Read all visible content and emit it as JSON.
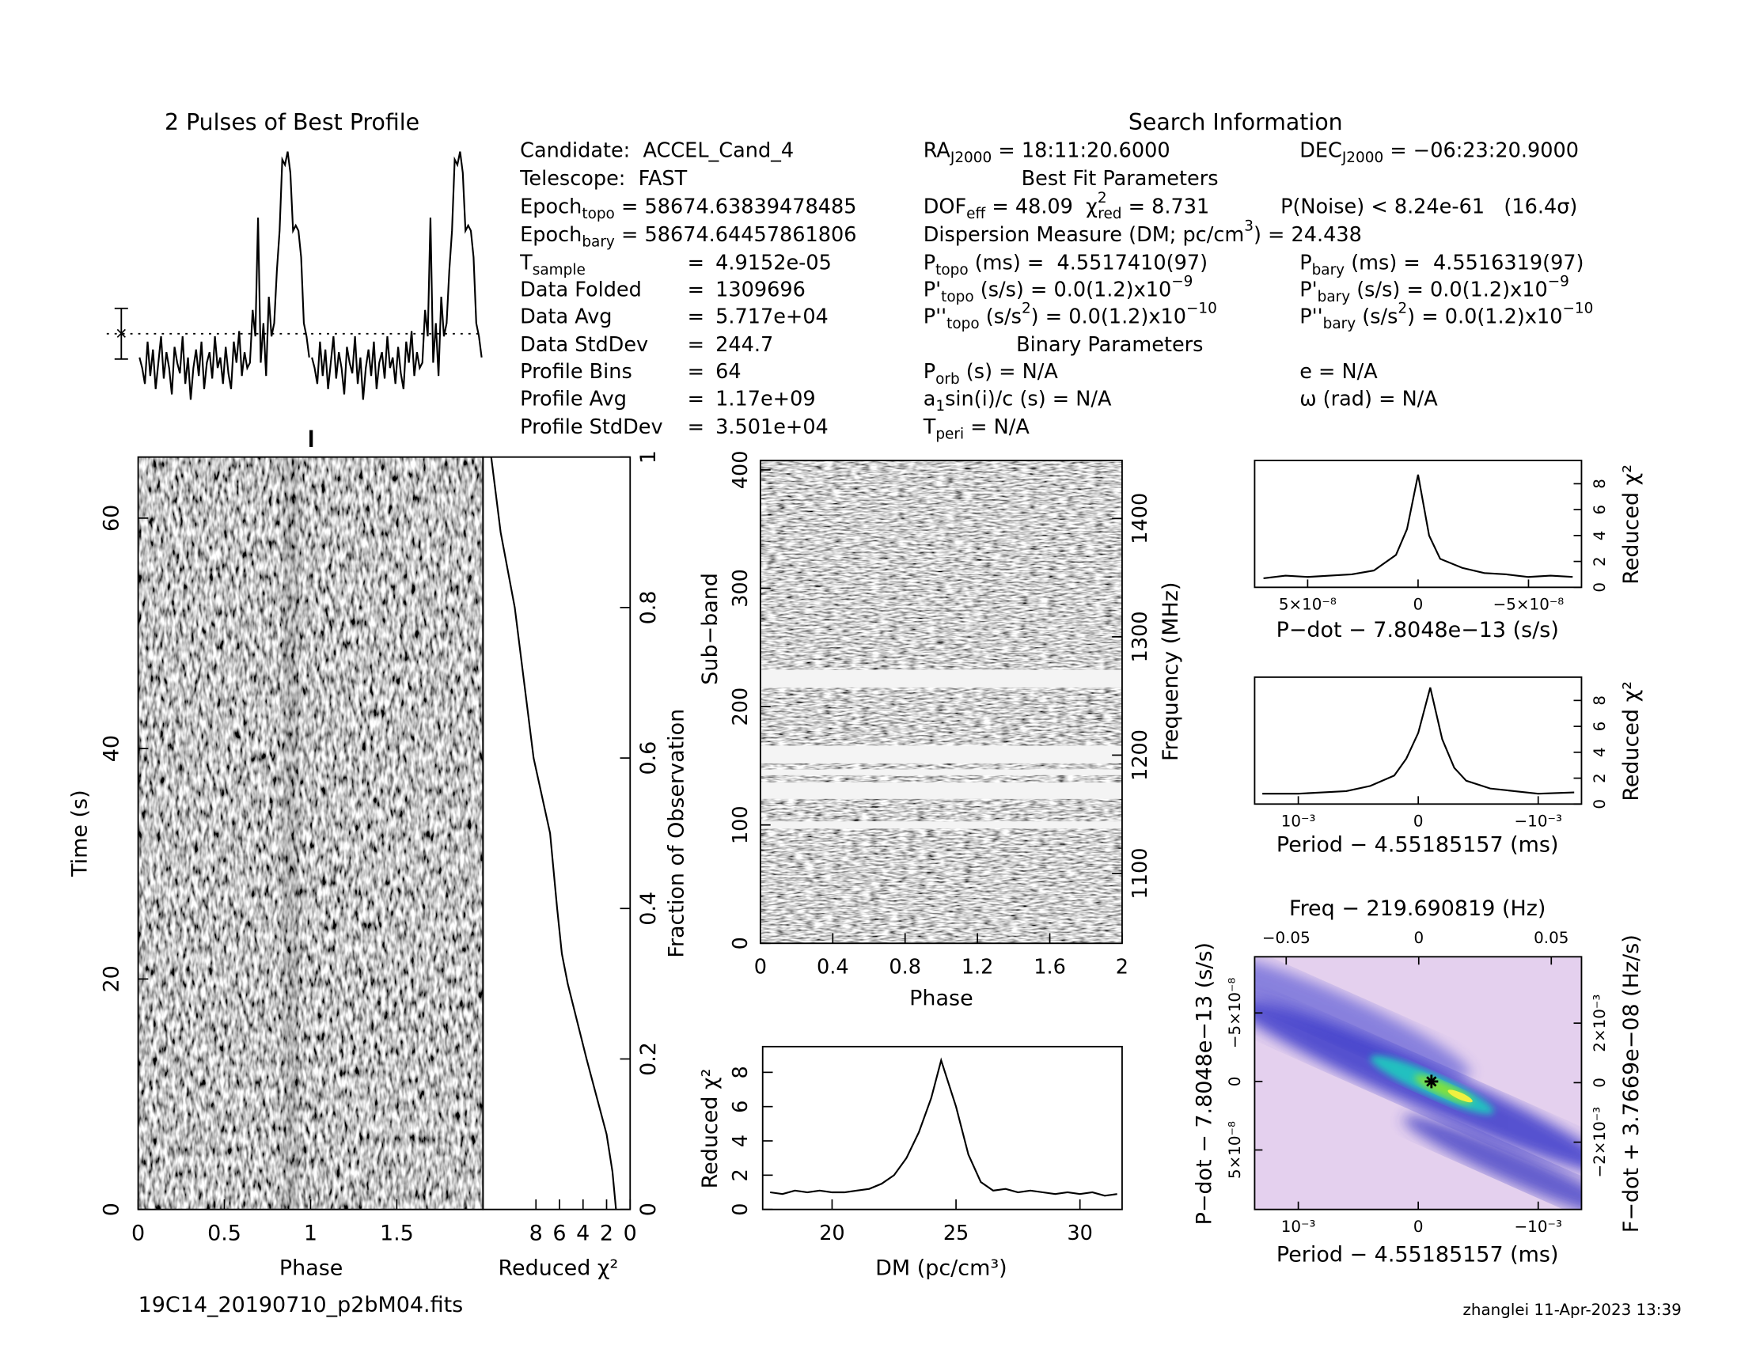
{
  "header": {
    "info_title": "Search Information",
    "best_fit_title": "Best Fit Parameters",
    "binary_title": "Binary Parameters",
    "col1": [
      [
        "Candidate:  ACCEL_Cand_4"
      ],
      [
        "Telescope:  FAST"
      ],
      [
        "Epoch",
        {
          "sub": "topo"
        },
        " = 58674.63839478485"
      ],
      [
        "Epoch",
        {
          "sub": "bary"
        },
        " = 58674.64457861806"
      ],
      {
        "label": [
          "T",
          {
            "sub": "sample"
          }
        ],
        "eq": "=",
        "value": "4.9152e-05"
      },
      {
        "label": [
          "Data Folded"
        ],
        "eq": "=",
        "value": "1309696"
      },
      {
        "label": [
          "Data Avg"
        ],
        "eq": "=",
        "value": "5.717e+04"
      },
      {
        "label": [
          "Data StdDev"
        ],
        "eq": "=",
        "value": "244.7"
      },
      {
        "label": [
          "Profile Bins"
        ],
        "eq": "=",
        "value": "64"
      },
      {
        "label": [
          "Profile Avg"
        ],
        "eq": "=",
        "value": "1.17e+09"
      },
      {
        "label": [
          "Profile StdDev"
        ],
        "eq": "=",
        "value": "3.501e+04"
      }
    ],
    "col2": [
      [
        "RA",
        {
          "sub": "J2000"
        },
        " = 18:11:20.6000"
      ],
      [
        "DOF",
        {
          "sub": "eff"
        },
        " = 48.09  χ",
        {
          "sup": "2"
        },
        {
          "sub": "red"
        },
        " = 8.731"
      ],
      [
        "Dispersion Measure (DM; pc/cm",
        {
          "sup": "3"
        },
        ") = 24.438"
      ],
      [
        "P",
        {
          "sub": "topo"
        },
        " (ms) =  4.5517410(97)"
      ],
      [
        "P'",
        {
          "sub": "topo"
        },
        " (s/s) = 0.0(1.2)x10",
        {
          "sup": "−9"
        }
      ],
      [
        "P''",
        {
          "sub": "topo"
        },
        " (s/s",
        {
          "sup": "2"
        },
        ") = 0.0(1.2)x10",
        {
          "sup": "−10"
        }
      ],
      [
        "P",
        {
          "sub": "orb"
        },
        " (s) = N/A"
      ],
      [
        "a",
        {
          "sub": "1"
        },
        "sin(i)/c (s) = N/A"
      ],
      [
        "T",
        {
          "sub": "peri"
        },
        " = N/A"
      ]
    ],
    "col3": [
      [
        "DEC",
        {
          "sub": "J2000"
        },
        " = −06:23:20.9000"
      ],
      [
        "P(Noise) < 8.24e-61   (16.4σ)"
      ],
      [
        "P",
        {
          "sub": "bary"
        },
        " (ms) =  4.5516319(97)"
      ],
      [
        "P'",
        {
          "sub": "bary"
        },
        " (s/s) = 0.0(1.2)x10",
        {
          "sup": "−9"
        }
      ],
      [
        "P''",
        {
          "sub": "bary"
        },
        " (s/s",
        {
          "sup": "2"
        },
        ") = 0.0(1.2)x10",
        {
          "sup": "−10"
        }
      ],
      [
        "e = N/A"
      ],
      [
        "ω (rad) = N/A"
      ]
    ]
  },
  "footer": {
    "file": "19C14_20190710_p2bM04.fits",
    "stamp": "zhanglei 11-Apr-2023 13:39"
  },
  "chart_data": [
    {
      "type": "profile",
      "title": "2 Pulses of Best Profile",
      "ylim": [
        0,
        100
      ],
      "avg": 31,
      "error": 9.6,
      "values": [
        22,
        18,
        12,
        28,
        15,
        25,
        10,
        20,
        30,
        14,
        24,
        18,
        8,
        26,
        20,
        16,
        30,
        12,
        22,
        6,
        18,
        25,
        15,
        28,
        10,
        20,
        24,
        14,
        30,
        18,
        22,
        12,
        26,
        16,
        10,
        28,
        20,
        32,
        15,
        24,
        18,
        20,
        40,
        30,
        75,
        20,
        35,
        15,
        45,
        30,
        35,
        55,
        70,
        97,
        95,
        100,
        92,
        70,
        72,
        70,
        60,
        35,
        30,
        22
      ]
    },
    {
      "type": "image",
      "xlabel": "Phase",
      "ylabel": "Time (s)",
      "xlim": [
        0,
        2
      ],
      "xticks": [
        0,
        0.5,
        1,
        1.5
      ],
      "ylim": [
        0,
        65.3
      ],
      "yticks": [
        0,
        20,
        40,
        60
      ]
    },
    {
      "type": "line",
      "xlabel": "Reduced χ²",
      "ylabel": "Fraction of Observation",
      "yaxis_side": "right",
      "xlim": [
        12.5,
        0
      ],
      "xticks": [
        8,
        6,
        4,
        2,
        0
      ],
      "ylim": [
        0,
        1
      ],
      "yticks": [
        0,
        0.2,
        0.4,
        0.6,
        0.8,
        1
      ],
      "x": [
        1.2,
        1.5,
        2.0,
        3.7,
        5.3,
        5.8,
        6.2,
        6.8,
        8.2,
        9.0,
        9.8,
        11.0,
        11.8
      ],
      "values": [
        0,
        0.05,
        0.1,
        0.2,
        0.3,
        0.34,
        0.4,
        0.5,
        0.6,
        0.7,
        0.8,
        0.9,
        1.0
      ]
    },
    {
      "type": "image",
      "xlabel": "Phase",
      "ylabel": "Sub−band",
      "y2label": "Frequency (MHz)",
      "xlim": [
        0,
        2
      ],
      "xticks": [
        0,
        0.4,
        0.8,
        1.2,
        1.6,
        2
      ],
      "ylim": [
        0,
        408
      ],
      "yticks": [
        0,
        100,
        200,
        300,
        400
      ],
      "y2lim": [
        1041,
        1449
      ],
      "y2ticks": [
        1100,
        1200,
        1300,
        1400
      ],
      "masked": [
        [
          97,
          103
        ],
        [
          122,
          136
        ],
        [
          142,
          147
        ],
        [
          152,
          167
        ],
        [
          216,
          231
        ]
      ]
    },
    {
      "type": "line",
      "xlabel": "DM (pc/cm³)",
      "ylabel": "Reduced χ²",
      "xlim": [
        17.2,
        31.7
      ],
      "xticks": [
        20,
        25,
        30
      ],
      "ylim": [
        0,
        9.5
      ],
      "yticks": [
        0,
        2,
        4,
        6,
        8
      ],
      "x": [
        17.5,
        18,
        18.5,
        19,
        19.5,
        20,
        20.5,
        21,
        21.5,
        22,
        22.5,
        23,
        23.5,
        24,
        24.4,
        25,
        25.5,
        26,
        26.5,
        27,
        27.5,
        28,
        28.5,
        29,
        29.5,
        30,
        30.5,
        31,
        31.5
      ],
      "values": [
        1.0,
        0.9,
        1.1,
        1.0,
        1.1,
        1.0,
        1.0,
        1.1,
        1.2,
        1.5,
        2.0,
        3.0,
        4.5,
        6.5,
        8.7,
        6.0,
        3.2,
        1.6,
        1.1,
        1.2,
        1.0,
        1.1,
        1.0,
        0.9,
        1.0,
        0.9,
        1.0,
        0.8,
        0.9
      ]
    },
    {
      "type": "line",
      "xlabel": "P−dot − 7.8048e−13 (s/s)",
      "ylabel": "Reduced χ²",
      "yaxis_side": "right",
      "xlim": [
        7.4e-08,
        -7.4e-08
      ],
      "xticks": [
        {
          "value": 5e-08,
          "label": "5×10⁻⁸"
        },
        0,
        {
          "value": -5e-08,
          "label": "−5×10⁻⁸"
        }
      ],
      "ylim": [
        0,
        9.8
      ],
      "yticks": [
        0,
        2,
        4,
        6,
        8
      ],
      "x": [
        7e-08,
        6e-08,
        5e-08,
        4e-08,
        3e-08,
        2e-08,
        1e-08,
        5e-09,
        0,
        -5e-09,
        -1e-08,
        -2e-08,
        -3e-08,
        -4e-08,
        -5e-08,
        -6e-08,
        -7e-08
      ],
      "values": [
        0.7,
        0.9,
        0.8,
        0.9,
        1.0,
        1.3,
        2.5,
        4.5,
        8.7,
        4.0,
        2.2,
        1.5,
        1.1,
        1.0,
        0.8,
        0.9,
        0.8
      ]
    },
    {
      "type": "line",
      "xlabel": "Period − 4.55185157 (ms)",
      "ylabel": "Reduced χ²",
      "yaxis_side": "right",
      "xlim": [
        0.001364,
        -0.001361
      ],
      "xticks": [
        {
          "value": 0.001,
          "label": "10⁻³"
        },
        0,
        {
          "value": -0.001,
          "label": "−10⁻³"
        }
      ],
      "ylim": [
        0,
        9.8
      ],
      "yticks": [
        0,
        2,
        4,
        6,
        8
      ],
      "x": [
        0.0013,
        0.001,
        0.0008,
        0.0006,
        0.0004,
        0.0002,
        0.0001,
        0,
        -0.0001,
        -0.0002,
        -0.0003,
        -0.0004,
        -0.0006,
        -0.0008,
        -0.001,
        -0.0013
      ],
      "values": [
        0.8,
        0.8,
        0.9,
        1.0,
        1.4,
        2.2,
        3.5,
        5.5,
        9.0,
        5.0,
        2.8,
        1.8,
        1.2,
        1.0,
        0.8,
        0.9
      ]
    },
    {
      "type": "image",
      "xlabel": "Period − 4.55185157 (ms)",
      "x2label": "Freq − 219.690819 (Hz)",
      "ylabel": "P−dot − 7.8048e−13 (s/s)",
      "y2label": "F−dot + 3.7669e−08 (Hz/s)",
      "xlim": [
        0.001364,
        -0.001361
      ],
      "xticks": [
        {
          "value": 0.001,
          "label": "10⁻³"
        },
        0,
        {
          "value": -0.001,
          "label": "−10⁻³"
        }
      ],
      "x2lim": [
        -0.0619,
        0.0614
      ],
      "x2ticks": [
        {
          "value": -0.05,
          "label": "−0.05"
        },
        0,
        0.05
      ],
      "ylim": [
        9.34e-08,
        -9.1e-08
      ],
      "yticks": [
        {
          "value": 5e-08,
          "label": "5×10⁻⁸"
        },
        0,
        {
          "value": -5e-08,
          "label": "−5×10⁻⁸"
        }
      ],
      "y2lim": [
        -0.00426,
        0.00423
      ],
      "y2ticks": [
        {
          "value": 0.002,
          "label": "2×10⁻³"
        },
        0,
        {
          "value": -0.002,
          "label": "−2×10⁻³"
        }
      ],
      "best": {
        "x": -0.00011,
        "y": 0
      }
    }
  ]
}
